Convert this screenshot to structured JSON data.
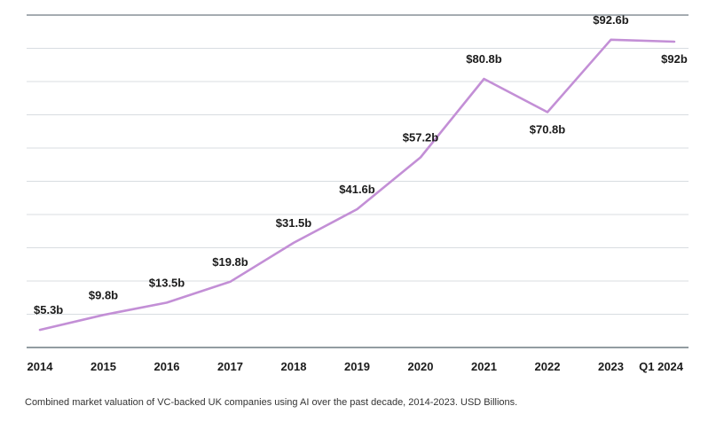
{
  "chart_data": {
    "type": "line",
    "categories": [
      "2014",
      "2015",
      "2016",
      "2017",
      "2018",
      "2019",
      "2020",
      "2021",
      "2022",
      "2023",
      "Q1 2024"
    ],
    "series": [
      {
        "values": [
          5.3,
          9.8,
          13.5,
          19.8,
          31.5,
          41.6,
          57.2,
          80.8,
          70.8,
          92.6,
          92
        ],
        "data_labels": [
          "$5.3b",
          "$9.8b",
          "$13.5b",
          "$19.8b",
          "$31.5b",
          "$41.6b",
          "$57.2b",
          "$80.8b",
          "$70.8b",
          "$92.6b",
          "$92b"
        ]
      }
    ],
    "title": "",
    "xlabel": "",
    "ylabel": "",
    "ylim": [
      0,
      100
    ],
    "grid": true,
    "legend": "none",
    "colors": {
      "line": "#c38fd6",
      "grid": "#d8dde1",
      "axis": "#6f7b82",
      "text": "#1b1b1b"
    }
  },
  "caption": "Combined market valuation of VC-backed UK companies using AI over the past decade, 2014-2023. USD Billions."
}
